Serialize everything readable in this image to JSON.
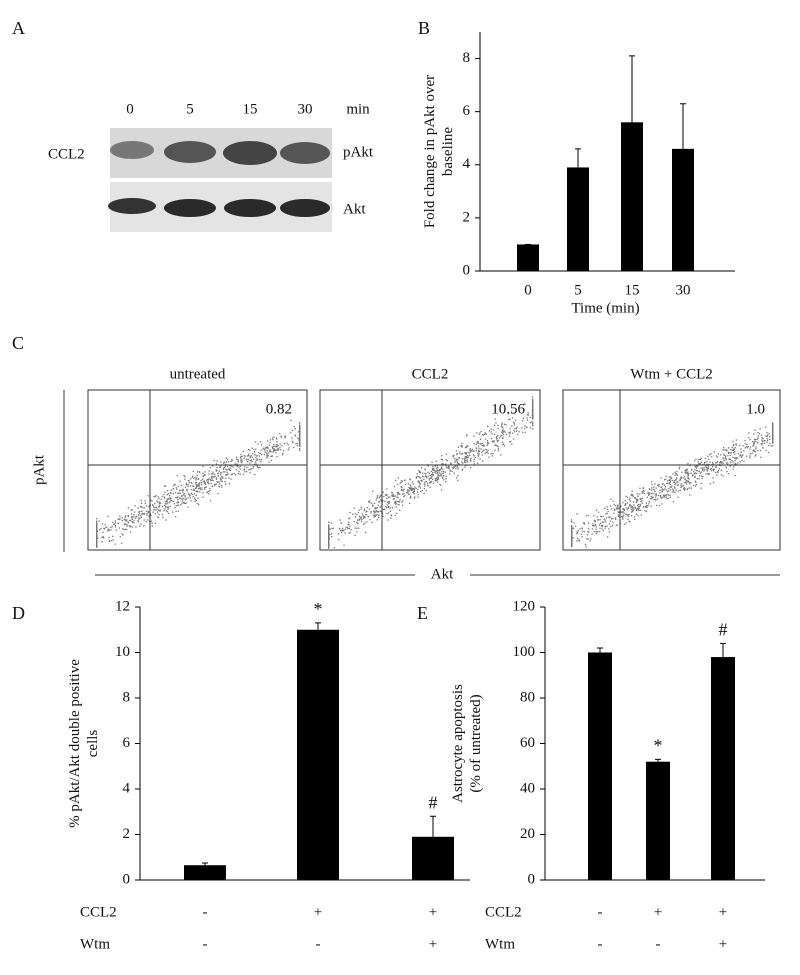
{
  "panel_a": {
    "label": "A",
    "times": [
      "0",
      "5",
      "15",
      "30"
    ],
    "unit": "min",
    "treatment": "CCL2",
    "bands": [
      "pAkt",
      "Akt"
    ]
  },
  "panel_c": {
    "label": "C",
    "plots": [
      {
        "title": "untreated",
        "quadrant_value": "0.82"
      },
      {
        "title": "CCL2",
        "quadrant_value": "10.56"
      },
      {
        "title": "Wtm + CCL2",
        "quadrant_value": "1.0"
      }
    ],
    "ylabel": "pAkt",
    "xlabel": "Akt"
  },
  "chart_data": [
    {
      "type": "bar",
      "panel": "B",
      "categories": [
        "0",
        "5",
        "15",
        "30"
      ],
      "values": [
        1,
        3.9,
        5.6,
        4.6
      ],
      "errors": [
        0,
        0.7,
        2.5,
        1.7
      ],
      "color": "#000000",
      "ylim": [
        0,
        9
      ],
      "yticks": [
        0,
        2,
        4,
        6,
        8
      ],
      "ylabel": [
        "Fold change in pAkt over",
        "baseline"
      ],
      "xlabel": "Time (min)"
    },
    {
      "type": "bar",
      "panel": "D",
      "values": [
        0.65,
        11,
        1.9
      ],
      "errors": [
        0.1,
        0.3,
        0.9
      ],
      "annotations": [
        null,
        "*",
        "#"
      ],
      "color": "#000000",
      "ylim": [
        0,
        12
      ],
      "yticks": [
        0,
        2,
        4,
        6,
        8,
        10,
        12
      ],
      "ylabel": [
        "% pAkt/Akt double positive",
        "cells"
      ],
      "conditions": [
        {
          "name": "CCL2",
          "values": [
            "-",
            "+",
            "+"
          ]
        },
        {
          "name": "Wtm",
          "values": [
            "-",
            "-",
            "+"
          ]
        }
      ]
    },
    {
      "type": "bar",
      "panel": "E",
      "values": [
        100,
        52,
        98
      ],
      "errors": [
        2,
        1,
        6
      ],
      "annotations": [
        null,
        "*",
        "#"
      ],
      "color": "#000000",
      "ylim": [
        0,
        120
      ],
      "yticks": [
        0,
        20,
        40,
        60,
        80,
        100,
        120
      ],
      "ylabel": [
        "Astrocyte apoptosis",
        "(% of untreated)"
      ],
      "conditions": [
        {
          "name": "CCL2",
          "values": [
            "-",
            "+",
            "+"
          ]
        },
        {
          "name": "Wtm",
          "values": [
            "-",
            "-",
            "+"
          ]
        }
      ]
    }
  ]
}
